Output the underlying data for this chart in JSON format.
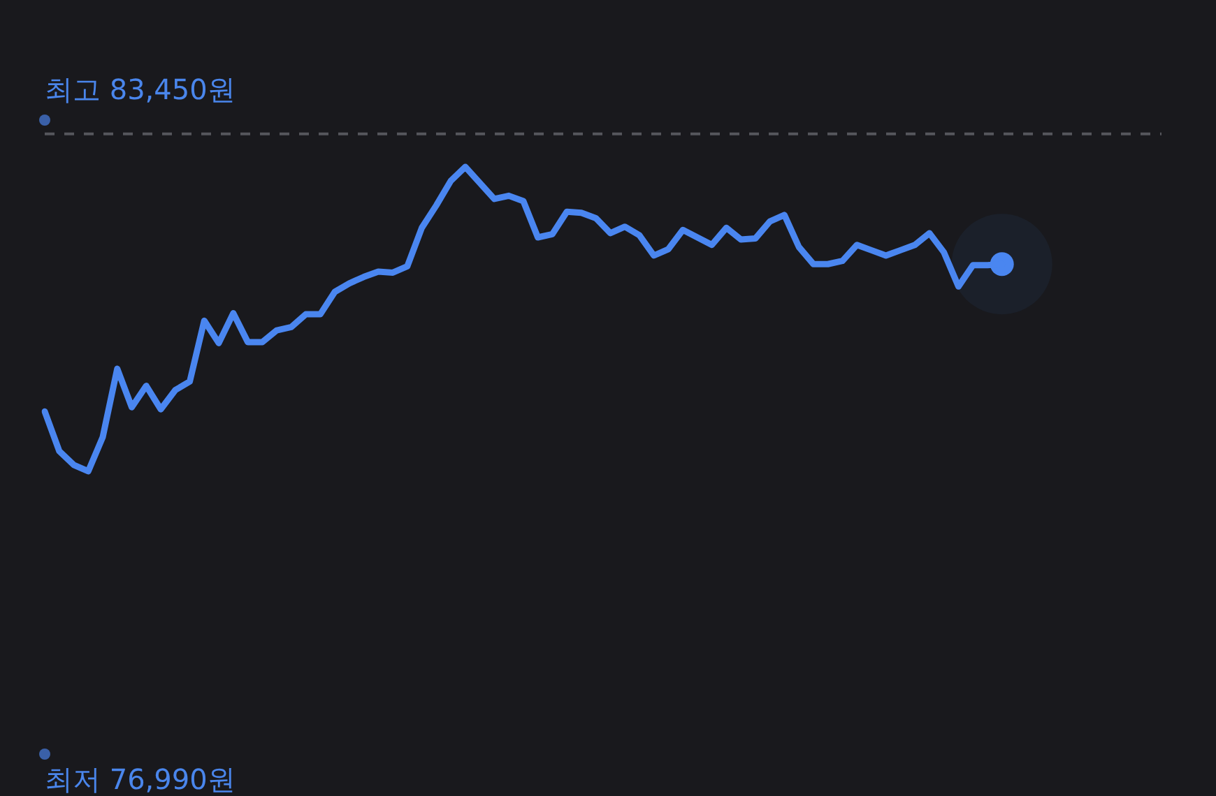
{
  "chart_data": {
    "type": "line",
    "categories": [
      null,
      null,
      null,
      null,
      null,
      null,
      null,
      null,
      null,
      null,
      null,
      null,
      null,
      null,
      null,
      null,
      null,
      null,
      null,
      null,
      null,
      null,
      null,
      null,
      null,
      null,
      null,
      null,
      null,
      null,
      null,
      null,
      null,
      null,
      null,
      null,
      null,
      null,
      null,
      null,
      null,
      null,
      null,
      null,
      null,
      null,
      null,
      null,
      null,
      null,
      null,
      null,
      null,
      null,
      null,
      null,
      null,
      null,
      null,
      null,
      null,
      null,
      null,
      null,
      null,
      null,
      null,
      null,
      null,
      null,
      null,
      null,
      null,
      null,
      null,
      null,
      null,
      null
    ],
    "ylim": [
      76990,
      83450
    ],
    "yticks": [
      {
        "value": 83450,
        "label": "83,450원"
      },
      {
        "value": 76990,
        "label": "76,990원"
      }
    ],
    "tick_labels": "y",
    "annotations": [
      "최고",
      "최저"
    ],
    "ref_lines": [
      {
        "axis": "y",
        "value": 83060,
        "line_style": "dashed",
        "color": "#55565c"
      }
    ],
    "series": [
      {
        "color": "#4a86f0",
        "values": [
          80460,
          80090,
          79960,
          79900,
          80220,
          80860,
          80500,
          80700,
          80480,
          80660,
          80740,
          81310,
          81100,
          81380,
          81110,
          81110,
          81220,
          81250,
          81370,
          81370,
          81580,
          81660,
          81720,
          81770,
          81760,
          81820,
          82180,
          82390,
          82620,
          82750,
          82600,
          82450,
          82480,
          82430,
          82090,
          82120,
          82330,
          82320,
          82270,
          82130,
          82190,
          82110,
          81920,
          81980,
          82160,
          82090,
          82020,
          82180,
          82070,
          82080,
          82240,
          82300,
          82000,
          81840,
          81840,
          81870,
          82020,
          81970,
          81920,
          81970,
          82020,
          82130,
          81950,
          81630,
          81830,
          81830,
          81840,
          null,
          null,
          null,
          null,
          null,
          null,
          null,
          null,
          null,
          null,
          null
        ]
      },
      {
        "type": "scatter",
        "color": "#4a86f0",
        "marker": "circle",
        "values": [
          null,
          null,
          null,
          null,
          null,
          null,
          null,
          null,
          null,
          null,
          null,
          null,
          null,
          null,
          null,
          null,
          null,
          null,
          null,
          null,
          null,
          null,
          null,
          null,
          null,
          null,
          null,
          null,
          null,
          null,
          null,
          null,
          null,
          null,
          null,
          null,
          null,
          null,
          null,
          null,
          null,
          null,
          null,
          null,
          null,
          null,
          null,
          null,
          null,
          null,
          null,
          null,
          null,
          null,
          null,
          null,
          null,
          null,
          null,
          null,
          null,
          null,
          null,
          null,
          null,
          null,
          81840,
          null,
          null,
          null,
          null,
          null,
          null,
          null,
          null,
          null,
          null,
          null
        ]
      }
    ]
  }
}
